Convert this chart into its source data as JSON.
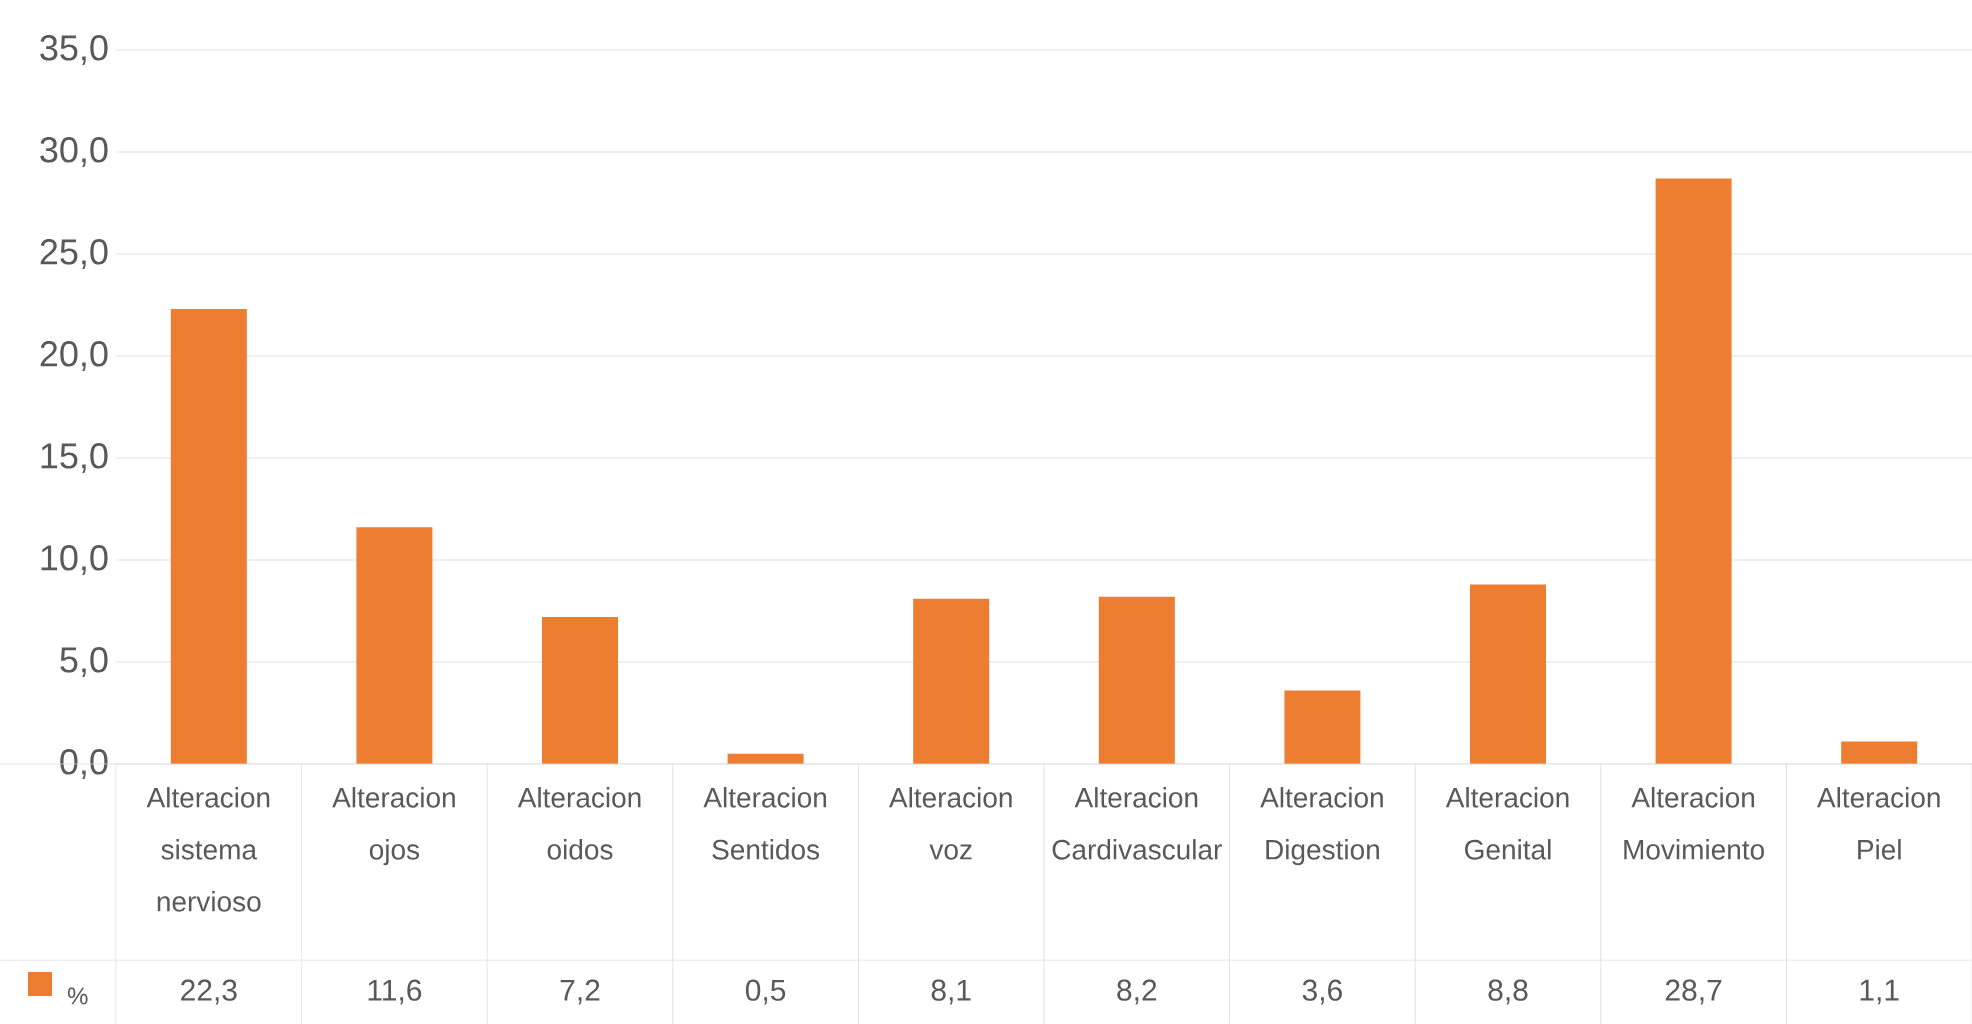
{
  "chart_data": {
    "type": "bar",
    "categories": [
      "Alteracion sistema nervioso",
      "Alteracion ojos",
      "Alteracion oidos",
      "Alteracion Sentidos",
      "Alteracion voz",
      "Alteracion Cardivascular",
      "Alteracion Digestion",
      "Alteracion Genital",
      "Alteracion Movimiento",
      "Alteracion Piel"
    ],
    "series": [
      {
        "name": "%",
        "color": "#ed7d31",
        "values": [
          22.3,
          11.6,
          7.2,
          0.5,
          8.1,
          8.2,
          3.6,
          8.8,
          28.7,
          1.1
        ],
        "value_labels": [
          "22,3",
          "11,6",
          "7,2",
          "0,5",
          "8,1",
          "8,2",
          "3,6",
          "8,8",
          "28,7",
          "1,1"
        ]
      }
    ],
    "ylim": [
      0,
      35
    ],
    "yticks": [
      {
        "value": 0,
        "label": "0,0"
      },
      {
        "value": 5,
        "label": "5,0"
      },
      {
        "value": 10,
        "label": "10,0"
      },
      {
        "value": 15,
        "label": "15,0"
      },
      {
        "value": 20,
        "label": "20,0"
      },
      {
        "value": 25,
        "label": "25,0"
      },
      {
        "value": 30,
        "label": "30,0"
      },
      {
        "value": 35,
        "label": "35,0"
      }
    ],
    "grid": "y",
    "legend": "bottom"
  }
}
